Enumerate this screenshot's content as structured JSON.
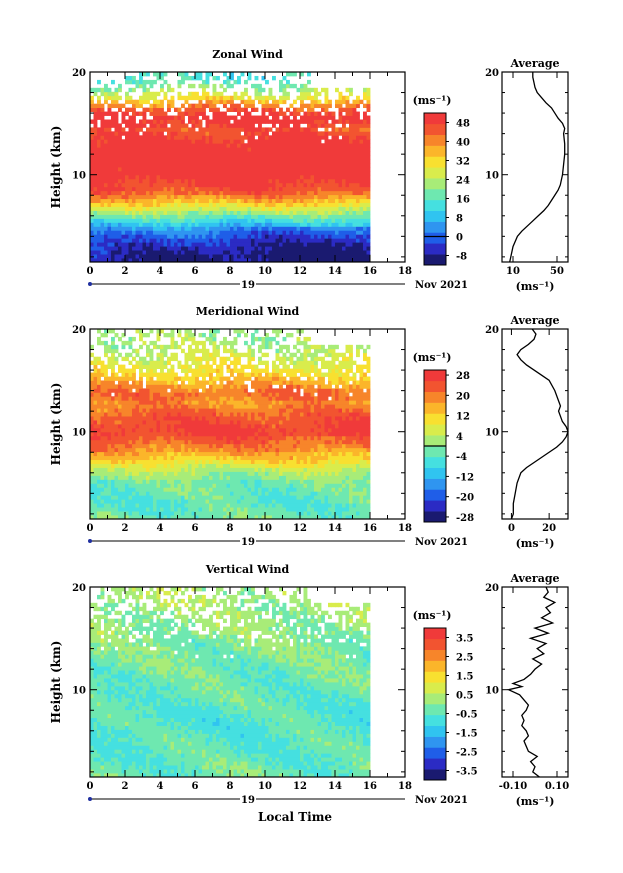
{
  "chart_data": [
    {
      "type": "heatmap",
      "title": "Zonal Wind",
      "ylabel": "Height (km)",
      "xlabel": "",
      "xlim": [
        0,
        18
      ],
      "ylim": [
        1.5,
        20
      ],
      "xticks": [
        "0",
        "2",
        "4",
        "6",
        "8",
        "10",
        "12",
        "14",
        "16",
        "18"
      ],
      "yticks": [
        {
          "value": 10,
          "label": "10"
        },
        {
          "value": 20,
          "label": "20"
        }
      ],
      "date_day": "19",
      "date_month": "Nov 2021",
      "colorbar": {
        "unit": "(ms⁻¹)",
        "min": -12,
        "max": 52,
        "ticks": [
          {
            "value": 48,
            "label": "48"
          },
          {
            "value": 40,
            "label": "40"
          },
          {
            "value": 32,
            "label": "32"
          },
          {
            "value": 24,
            "label": "24"
          },
          {
            "value": 16,
            "label": "16"
          },
          {
            "value": 8,
            "label": "8"
          },
          {
            "value": 0,
            "label": "0"
          },
          {
            "value": -8,
            "label": "-8"
          }
        ],
        "zero_line": 0
      },
      "data_time_range": [
        0,
        16
      ],
      "layers": [
        {
          "height": 1.7,
          "value": -7
        },
        {
          "height": 3,
          "value": -4
        },
        {
          "height": 4.2,
          "value": 2
        },
        {
          "height": 5.3,
          "value": 10
        },
        {
          "height": 6.3,
          "value": 22
        },
        {
          "height": 7.3,
          "value": 34
        },
        {
          "height": 8.5,
          "value": 46
        },
        {
          "height": 10,
          "value": 52
        },
        {
          "height": 12,
          "value": 53
        },
        {
          "height": 13.2,
          "value": 50
        },
        {
          "height": 14.4,
          "value": 46
        },
        {
          "height": 15.6,
          "value": 52
        },
        {
          "height": 16.5,
          "value": 44
        },
        {
          "height": 17.5,
          "value": 30
        },
        {
          "height": 18.5,
          "value": 20
        },
        {
          "height": 19.5,
          "value": 14
        }
      ],
      "profile": {
        "title": "Average",
        "xlim": [
          0,
          60
        ],
        "xticks": [
          {
            "value": 10,
            "label": "10"
          },
          {
            "value": 50,
            "label": "50"
          }
        ],
        "xlabel": "(ms⁻¹)",
        "heights": [
          1.5,
          2,
          3,
          4,
          4.5,
          5,
          5.5,
          6,
          6.5,
          7,
          7.5,
          8,
          8.5,
          9,
          10,
          11,
          12,
          13,
          14,
          14.5,
          15,
          15.5,
          16,
          16.5,
          17,
          17.5,
          18,
          18.5,
          19,
          19.5,
          20
        ],
        "values": [
          7,
          8,
          10,
          14,
          18,
          23,
          28,
          33,
          38,
          42,
          45,
          48,
          51,
          53,
          55,
          56,
          57,
          57,
          56,
          57,
          55,
          51,
          48,
          45,
          40,
          36,
          32,
          30,
          29,
          28,
          28
        ]
      }
    },
    {
      "type": "heatmap",
      "title": "Meridional Wind",
      "ylabel": "Height (km)",
      "xlabel": "",
      "xlim": [
        0,
        18
      ],
      "ylim": [
        1.5,
        20
      ],
      "xticks": [
        "0",
        "2",
        "4",
        "6",
        "8",
        "10",
        "12",
        "14",
        "16",
        "18"
      ],
      "yticks": [
        {
          "value": 10,
          "label": "10"
        },
        {
          "value": 20,
          "label": "20"
        }
      ],
      "date_day": "19",
      "date_month": "Nov 2021",
      "colorbar": {
        "unit": "(ms⁻¹)",
        "min": -30,
        "max": 30,
        "ticks": [
          {
            "value": 28,
            "label": "28"
          },
          {
            "value": 20,
            "label": "20"
          },
          {
            "value": 12,
            "label": "12"
          },
          {
            "value": 4,
            "label": "4"
          },
          {
            "value": -4,
            "label": "-4"
          },
          {
            "value": -12,
            "label": "-12"
          },
          {
            "value": -20,
            "label": "-20"
          },
          {
            "value": -28,
            "label": "-28"
          }
        ],
        "zero_line": 0
      },
      "data_time_range": [
        0,
        16
      ],
      "layers": [
        {
          "height": 1.7,
          "value": -2
        },
        {
          "height": 3,
          "value": -4
        },
        {
          "height": 4.2,
          "value": -3
        },
        {
          "height": 5.3,
          "value": -1
        },
        {
          "height": 6.3,
          "value": 4
        },
        {
          "height": 7.3,
          "value": 12
        },
        {
          "height": 8.5,
          "value": 20
        },
        {
          "height": 10,
          "value": 27
        },
        {
          "height": 11.5,
          "value": 24
        },
        {
          "height": 12.8,
          "value": 18
        },
        {
          "height": 13.8,
          "value": 22
        },
        {
          "height": 14.8,
          "value": 16
        },
        {
          "height": 15.8,
          "value": 10
        },
        {
          "height": 16.8,
          "value": 8
        },
        {
          "height": 17.8,
          "value": 4
        },
        {
          "height": 19,
          "value": 2
        }
      ],
      "profile": {
        "title": "Average",
        "xlim": [
          -5,
          30
        ],
        "xticks": [
          {
            "value": 0,
            "label": "0"
          },
          {
            "value": 20,
            "label": "20"
          }
        ],
        "xlabel": "(ms⁻¹)",
        "heights": [
          1.5,
          2,
          3,
          4,
          5,
          6,
          6.5,
          7,
          7.5,
          8,
          8.5,
          9,
          9.5,
          10,
          10.5,
          11,
          11.5,
          12,
          12.5,
          13,
          14,
          15,
          15.5,
          16,
          16.5,
          17,
          17.5,
          18,
          18.5,
          19,
          19.5,
          20
        ],
        "values": [
          0,
          1,
          1,
          2,
          3,
          5,
          8,
          12,
          16,
          20,
          24,
          27,
          29,
          30,
          29,
          27,
          26,
          25,
          26,
          25,
          23,
          20,
          16,
          12,
          8,
          5,
          3,
          5,
          9,
          12,
          13,
          11
        ]
      }
    },
    {
      "type": "heatmap",
      "title": "Vertical Wind",
      "ylabel": "Height (km)",
      "xlabel": "Local Time",
      "xlim": [
        0,
        18
      ],
      "ylim": [
        1.5,
        20
      ],
      "xticks": [
        "0",
        "2",
        "4",
        "6",
        "8",
        "10",
        "12",
        "14",
        "16",
        "18"
      ],
      "yticks": [
        {
          "value": 10,
          "label": "10"
        },
        {
          "value": 20,
          "label": "20"
        }
      ],
      "date_day": "19",
      "date_month": "Nov 2021",
      "colorbar": {
        "unit": "(ms⁻¹)",
        "min": -4,
        "max": 4,
        "ticks": [
          {
            "value": 3.5,
            "label": "3.5"
          },
          {
            "value": 2.5,
            "label": "2.5"
          },
          {
            "value": 1.5,
            "label": "1.5"
          },
          {
            "value": 0.5,
            "label": "0.5"
          },
          {
            "value": -0.5,
            "label": "-0.5"
          },
          {
            "value": -1.5,
            "label": "-1.5"
          },
          {
            "value": -2.5,
            "label": "-2.5"
          },
          {
            "value": -3.5,
            "label": "-3.5"
          }
        ],
        "zero_line": null
      },
      "data_time_range": [
        0,
        16
      ],
      "layers": [
        {
          "height": 1.7,
          "value": -0.3
        },
        {
          "height": 4,
          "value": -0.5
        },
        {
          "height": 7,
          "value": -0.6
        },
        {
          "height": 10,
          "value": -0.4
        },
        {
          "height": 13,
          "value": -0.2
        },
        {
          "height": 16,
          "value": 0.1
        },
        {
          "height": 19,
          "value": 0.3
        }
      ],
      "profile": {
        "title": "Average",
        "xlim": [
          -0.15,
          0.15
        ],
        "xticks": [
          {
            "value": -0.1,
            "label": "-0.10"
          },
          {
            "value": 0.1,
            "label": "0.10"
          }
        ],
        "xlabel": "(ms⁻¹)",
        "heights": [
          1.5,
          2,
          2.5,
          3,
          3.5,
          4,
          4.5,
          5,
          5.5,
          6,
          6.5,
          7,
          7.5,
          8,
          8.5,
          9,
          9.5,
          10,
          10.3,
          10.6,
          11,
          11.5,
          12,
          12.5,
          13,
          13.5,
          14,
          14.5,
          15,
          15.5,
          16,
          16.5,
          17,
          17.5,
          18,
          18.5,
          19,
          19.5,
          20
        ],
        "values": [
          0.02,
          -0.01,
          0.0,
          -0.02,
          0.01,
          -0.03,
          -0.04,
          -0.05,
          -0.03,
          -0.04,
          -0.06,
          -0.05,
          -0.06,
          -0.04,
          -0.03,
          -0.05,
          -0.07,
          -0.12,
          -0.06,
          -0.1,
          -0.05,
          -0.02,
          0.0,
          0.03,
          -0.01,
          0.04,
          0.01,
          0.05,
          -0.02,
          0.06,
          0.0,
          0.08,
          0.03,
          0.07,
          0.05,
          0.09,
          0.04,
          0.06,
          0.05
        ]
      }
    }
  ]
}
